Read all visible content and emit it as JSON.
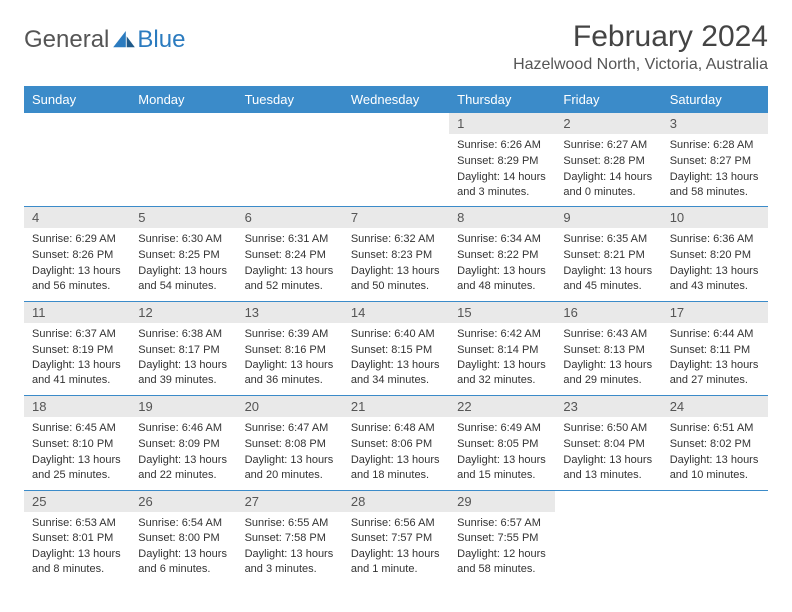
{
  "brand": {
    "part1": "General",
    "part2": "Blue"
  },
  "title": "February 2024",
  "location": "Hazelwood North, Victoria, Australia",
  "colors": {
    "header_bg": "#3b8bc9",
    "header_fg": "#ffffff",
    "daynum_bg": "#e9e9e9",
    "row_border": "#3b8bc9",
    "text": "#333333",
    "logo_blue": "#2b7bbf"
  },
  "weekdays": [
    "Sunday",
    "Monday",
    "Tuesday",
    "Wednesday",
    "Thursday",
    "Friday",
    "Saturday"
  ],
  "weeks": [
    [
      null,
      null,
      null,
      null,
      {
        "n": "1",
        "sunrise": "6:26 AM",
        "sunset": "8:29 PM",
        "daylight": "14 hours and 3 minutes."
      },
      {
        "n": "2",
        "sunrise": "6:27 AM",
        "sunset": "8:28 PM",
        "daylight": "14 hours and 0 minutes."
      },
      {
        "n": "3",
        "sunrise": "6:28 AM",
        "sunset": "8:27 PM",
        "daylight": "13 hours and 58 minutes."
      }
    ],
    [
      {
        "n": "4",
        "sunrise": "6:29 AM",
        "sunset": "8:26 PM",
        "daylight": "13 hours and 56 minutes."
      },
      {
        "n": "5",
        "sunrise": "6:30 AM",
        "sunset": "8:25 PM",
        "daylight": "13 hours and 54 minutes."
      },
      {
        "n": "6",
        "sunrise": "6:31 AM",
        "sunset": "8:24 PM",
        "daylight": "13 hours and 52 minutes."
      },
      {
        "n": "7",
        "sunrise": "6:32 AM",
        "sunset": "8:23 PM",
        "daylight": "13 hours and 50 minutes."
      },
      {
        "n": "8",
        "sunrise": "6:34 AM",
        "sunset": "8:22 PM",
        "daylight": "13 hours and 48 minutes."
      },
      {
        "n": "9",
        "sunrise": "6:35 AM",
        "sunset": "8:21 PM",
        "daylight": "13 hours and 45 minutes."
      },
      {
        "n": "10",
        "sunrise": "6:36 AM",
        "sunset": "8:20 PM",
        "daylight": "13 hours and 43 minutes."
      }
    ],
    [
      {
        "n": "11",
        "sunrise": "6:37 AM",
        "sunset": "8:19 PM",
        "daylight": "13 hours and 41 minutes."
      },
      {
        "n": "12",
        "sunrise": "6:38 AM",
        "sunset": "8:17 PM",
        "daylight": "13 hours and 39 minutes."
      },
      {
        "n": "13",
        "sunrise": "6:39 AM",
        "sunset": "8:16 PM",
        "daylight": "13 hours and 36 minutes."
      },
      {
        "n": "14",
        "sunrise": "6:40 AM",
        "sunset": "8:15 PM",
        "daylight": "13 hours and 34 minutes."
      },
      {
        "n": "15",
        "sunrise": "6:42 AM",
        "sunset": "8:14 PM",
        "daylight": "13 hours and 32 minutes."
      },
      {
        "n": "16",
        "sunrise": "6:43 AM",
        "sunset": "8:13 PM",
        "daylight": "13 hours and 29 minutes."
      },
      {
        "n": "17",
        "sunrise": "6:44 AM",
        "sunset": "8:11 PM",
        "daylight": "13 hours and 27 minutes."
      }
    ],
    [
      {
        "n": "18",
        "sunrise": "6:45 AM",
        "sunset": "8:10 PM",
        "daylight": "13 hours and 25 minutes."
      },
      {
        "n": "19",
        "sunrise": "6:46 AM",
        "sunset": "8:09 PM",
        "daylight": "13 hours and 22 minutes."
      },
      {
        "n": "20",
        "sunrise": "6:47 AM",
        "sunset": "8:08 PM",
        "daylight": "13 hours and 20 minutes."
      },
      {
        "n": "21",
        "sunrise": "6:48 AM",
        "sunset": "8:06 PM",
        "daylight": "13 hours and 18 minutes."
      },
      {
        "n": "22",
        "sunrise": "6:49 AM",
        "sunset": "8:05 PM",
        "daylight": "13 hours and 15 minutes."
      },
      {
        "n": "23",
        "sunrise": "6:50 AM",
        "sunset": "8:04 PM",
        "daylight": "13 hours and 13 minutes."
      },
      {
        "n": "24",
        "sunrise": "6:51 AM",
        "sunset": "8:02 PM",
        "daylight": "13 hours and 10 minutes."
      }
    ],
    [
      {
        "n": "25",
        "sunrise": "6:53 AM",
        "sunset": "8:01 PM",
        "daylight": "13 hours and 8 minutes."
      },
      {
        "n": "26",
        "sunrise": "6:54 AM",
        "sunset": "8:00 PM",
        "daylight": "13 hours and 6 minutes."
      },
      {
        "n": "27",
        "sunrise": "6:55 AM",
        "sunset": "7:58 PM",
        "daylight": "13 hours and 3 minutes."
      },
      {
        "n": "28",
        "sunrise": "6:56 AM",
        "sunset": "7:57 PM",
        "daylight": "13 hours and 1 minute."
      },
      {
        "n": "29",
        "sunrise": "6:57 AM",
        "sunset": "7:55 PM",
        "daylight": "12 hours and 58 minutes."
      },
      null,
      null
    ]
  ],
  "labels": {
    "sunrise": "Sunrise: ",
    "sunset": "Sunset: ",
    "daylight": "Daylight: "
  }
}
